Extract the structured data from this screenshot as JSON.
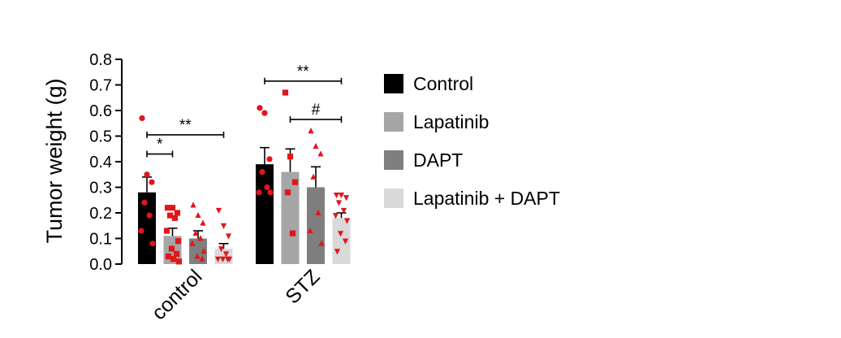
{
  "chart_data": {
    "type": "bar",
    "ylabel": "Tumor weight (g)",
    "ylim": [
      0,
      0.8
    ],
    "yticks": [
      "0.0",
      "0.1",
      "0.2",
      "0.3",
      "0.4",
      "0.5",
      "0.6",
      "0.7",
      "0.8"
    ],
    "categories": [
      "control",
      "STZ"
    ],
    "legend_position": "right",
    "point_color": "#e0161b",
    "series": [
      {
        "name": "Control",
        "color": "#000000",
        "marker": "circle",
        "values": [
          0.28,
          0.39
        ],
        "errors": [
          0.06,
          0.065
        ],
        "points": [
          [
            0.57,
            0.35,
            0.32,
            0.24,
            0.19,
            0.13,
            0.08
          ],
          [
            0.61,
            0.59,
            0.41,
            0.36,
            0.3,
            0.28,
            0.28
          ]
        ]
      },
      {
        "name": "Lapatinib",
        "color": "#a6a6a6",
        "marker": "square",
        "values": [
          0.11,
          0.36
        ],
        "errors": [
          0.03,
          0.09
        ],
        "points": [
          [
            0.22,
            0.22,
            0.2,
            0.19,
            0.18,
            0.13,
            0.09,
            0.06,
            0.04,
            0.03,
            0.02,
            0.01
          ],
          [
            0.67,
            0.42,
            0.32,
            0.28,
            0.12
          ]
        ]
      },
      {
        "name": "DAPT",
        "color": "#7f7f7f",
        "marker": "triangle",
        "values": [
          0.1,
          0.3
        ],
        "errors": [
          0.03,
          0.08
        ],
        "points": [
          [
            0.23,
            0.19,
            0.16,
            0.12,
            0.1,
            0.08,
            0.05,
            0.03,
            0.02
          ],
          [
            0.52,
            0.46,
            0.43,
            0.34,
            0.2,
            0.13,
            0.08
          ]
        ]
      },
      {
        "name": "Lapatinib + DAPT",
        "color": "#d9d9d9",
        "marker": "triangle-down",
        "values": [
          0.06,
          0.18
        ],
        "errors": [
          0.02,
          0.02
        ],
        "points": [
          [
            0.21,
            0.15,
            0.11,
            0.06,
            0.04,
            0.02,
            0.02,
            0.02,
            0.02
          ],
          [
            0.27,
            0.27,
            0.26,
            0.24,
            0.21,
            0.19,
            0.17,
            0.12,
            0.09,
            0.05
          ]
        ]
      }
    ],
    "significance": [
      {
        "label": "*",
        "category": 0,
        "from": 0,
        "to": 1,
        "y": 0.43
      },
      {
        "label": "**",
        "category": 0,
        "from": 0,
        "to": 3,
        "y": 0.505
      },
      {
        "label": "**",
        "category": 1,
        "from": 0,
        "to": 3,
        "y": 0.715
      },
      {
        "label": "#",
        "category": 1,
        "from": 1,
        "to": 3,
        "y": 0.565
      }
    ]
  }
}
